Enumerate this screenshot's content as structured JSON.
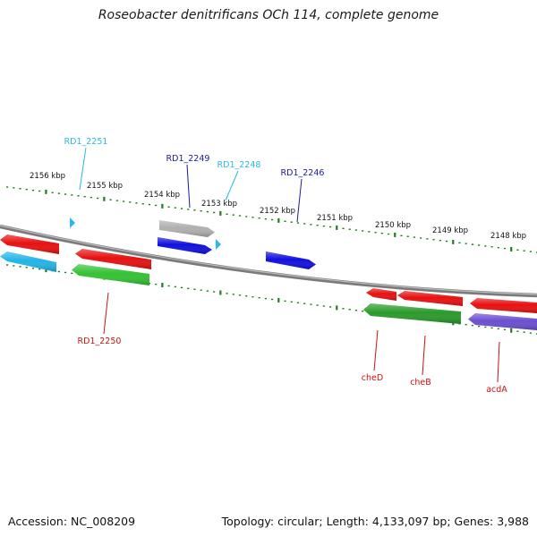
{
  "title": "Roseobacter denitrificans OCh 114, complete genome",
  "accession": "Accession: NC_008209",
  "summary": "Topology: circular; Length: 4,133,097 bp; Genes: 3,988",
  "colors": {
    "backbone": "#808080",
    "tick": "#1e7d1e",
    "tick_label": "#111111",
    "label_cyan": "#2ab8e8",
    "label_navy": "#1a1aa0",
    "label_red": "#cc1111"
  },
  "ticks": [
    {
      "label": "2156 kbp"
    },
    {
      "label": "2155 kbp"
    },
    {
      "label": "2154 kbp"
    },
    {
      "label": "2153 kbp"
    },
    {
      "label": "2152 kbp"
    },
    {
      "label": "2151 kbp"
    },
    {
      "label": "2150 kbp"
    },
    {
      "label": "2149 kbp"
    },
    {
      "label": "2148 kbp"
    }
  ],
  "features": [
    {
      "id": "red-left-upper",
      "color": "#e81010",
      "strand": "reverse",
      "label": ""
    },
    {
      "id": "cyan-left-lower",
      "color": "#22b4e8",
      "strand": "reverse",
      "label": ""
    },
    {
      "id": "red-upper-2",
      "color": "#e81010",
      "strand": "reverse",
      "label": ""
    },
    {
      "id": "green-rd1-2250",
      "color": "#33c233",
      "strand": "reverse",
      "label": ""
    },
    {
      "id": "grey-rd1-2249",
      "color": "#b0b0b0",
      "strand": "forward",
      "label": ""
    },
    {
      "id": "blue-rd1-2249",
      "color": "#1010e0",
      "strand": "forward",
      "label": ""
    },
    {
      "id": "blue-rd1-2246",
      "color": "#1010e0",
      "strand": "forward",
      "label": ""
    },
    {
      "id": "red-cheD",
      "color": "#e81010",
      "strand": "reverse",
      "label": ""
    },
    {
      "id": "red-cheB-upper",
      "color": "#e81010",
      "strand": "reverse",
      "label": ""
    },
    {
      "id": "green-cheD-cheB",
      "color": "#2a9a2a",
      "strand": "reverse",
      "label": ""
    },
    {
      "id": "red-right-upper",
      "color": "#e81010",
      "strand": "reverse",
      "label": ""
    },
    {
      "id": "purple-acdA",
      "color": "#6a4fd0",
      "strand": "reverse",
      "label": ""
    }
  ],
  "gene_labels": [
    {
      "id": "rd1-2251",
      "label": "RD1_2251",
      "color": "#2ab8e8"
    },
    {
      "id": "rd1-2249",
      "label": "RD1_2249",
      "color": "#1a1aa0"
    },
    {
      "id": "rd1-2248",
      "label": "RD1_2248",
      "color": "#2ab8e8"
    },
    {
      "id": "rd1-2246",
      "label": "RD1_2246",
      "color": "#1a1aa0"
    },
    {
      "id": "rd1-2250",
      "label": "RD1_2250",
      "color": "#cc1111"
    },
    {
      "id": "cheD",
      "label": "cheD",
      "color": "#cc1111"
    },
    {
      "id": "cheB",
      "label": "cheB",
      "color": "#cc1111"
    },
    {
      "id": "acdA",
      "label": "acdA",
      "color": "#cc1111"
    }
  ]
}
